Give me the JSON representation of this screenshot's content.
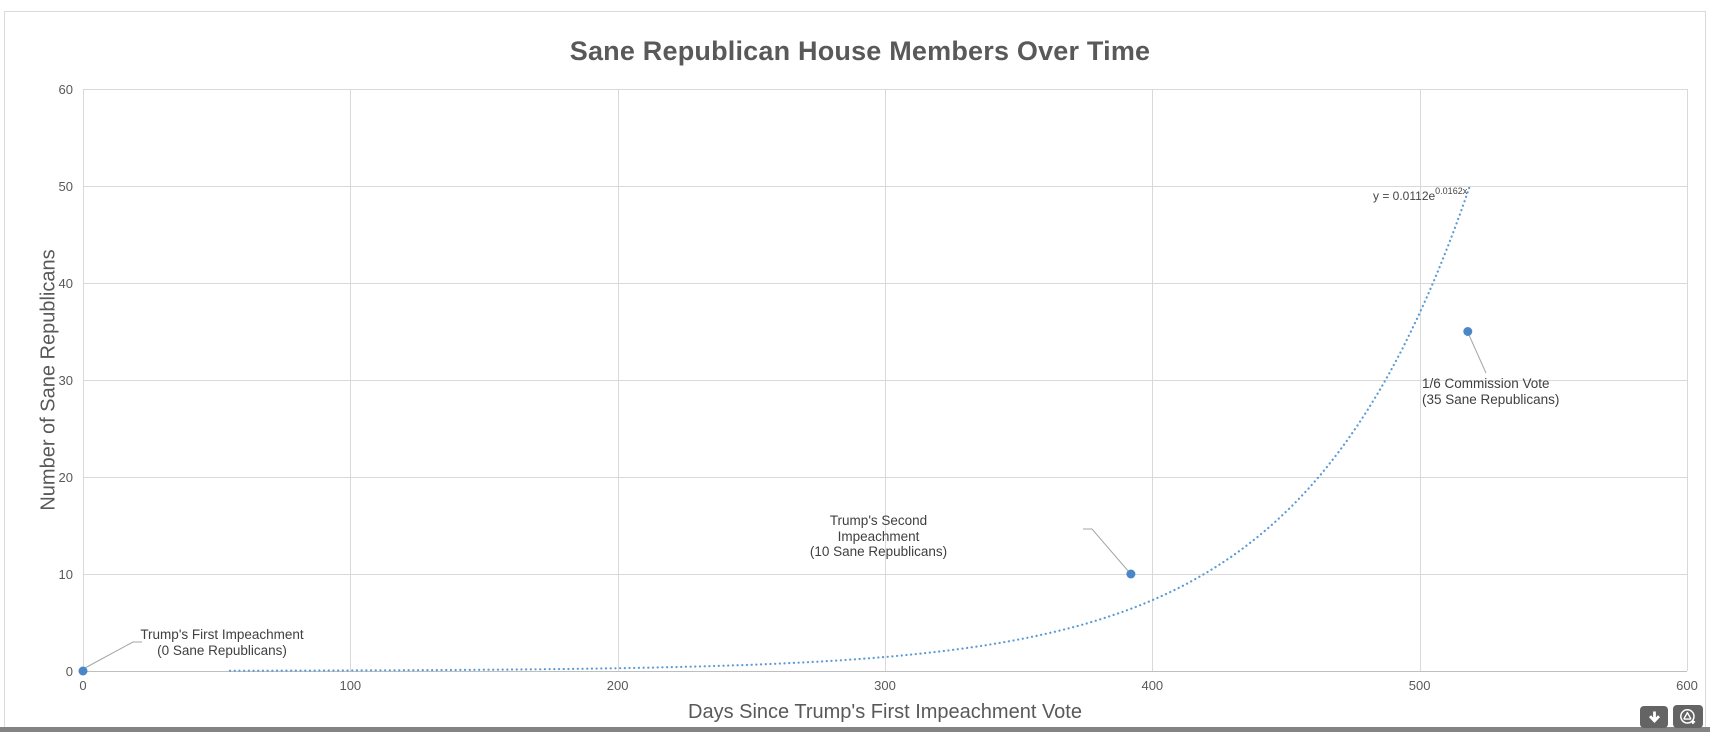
{
  "chart_data": {
    "type": "scatter",
    "title": "Sane Republican House Members Over Time",
    "xlabel": "Days Since Trump's First Impeachment Vote",
    "ylabel": "Number of Sane Republicans",
    "xlim": [
      0,
      600
    ],
    "ylim": [
      0,
      60
    ],
    "x_ticks": [
      0,
      100,
      200,
      300,
      400,
      500,
      600
    ],
    "y_ticks": [
      0,
      10,
      20,
      30,
      40,
      50,
      60
    ],
    "grid": true,
    "legend": "none",
    "series": [
      {
        "name": "Sane Republicans",
        "points": [
          {
            "x": 0,
            "y": 0,
            "annotation": [
              "Trump's First Impeachment",
              "(0 Sane Republicans)"
            ]
          },
          {
            "x": 392,
            "y": 10,
            "annotation": [
              "Trump's Second Impeachment",
              "(10 Sane Republicans)"
            ]
          },
          {
            "x": 518,
            "y": 35,
            "annotation": [
              "1/6 Commission Vote",
              "(35 Sane Republicans)"
            ]
          }
        ]
      }
    ],
    "trendline": {
      "type": "exponential",
      "a": 0.0112,
      "b": 0.0162,
      "label_base": "y = 0.0112e",
      "label_exponent": "0.0162x",
      "style": "dotted",
      "x_visible_start": 55,
      "x_end": 519
    },
    "colors": {
      "marker": "#4a86c8",
      "trendline": "#5b9bd5",
      "gridline": "#d9d9d9",
      "axis_line": "#bfbfbf",
      "leader_line": "#a6a6a6",
      "axis_text": "#595959",
      "annotation_text": "#404040"
    }
  },
  "toolbar": {
    "buttons": [
      {
        "icon": "download-icon"
      },
      {
        "icon": "triangle-circle-plus-icon"
      }
    ]
  }
}
